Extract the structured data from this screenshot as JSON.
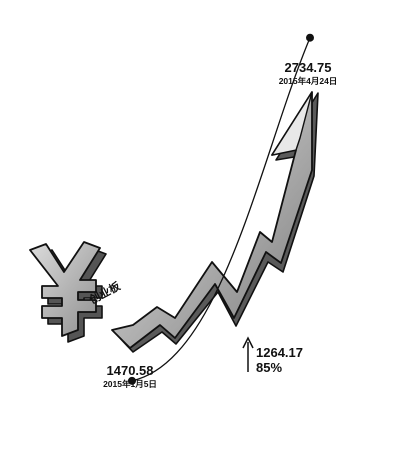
{
  "chart_data": {
    "type": "line",
    "title": "",
    "xlabel": "",
    "ylabel": "",
    "x": [
      "2015年1月5日",
      "2015年4月24日"
    ],
    "series": [
      {
        "values": [
          1470.58,
          2734.75
        ]
      }
    ],
    "annotations": {
      "start": {
        "value": "1470.58",
        "date": "2015年1月5日"
      },
      "end": {
        "value": "2734.75",
        "date": "2015年4月24日"
      },
      "change": {
        "value": "1264.17",
        "percent": "85%"
      }
    },
    "logo_text": "创业板",
    "ylim": [
      1400,
      2800
    ],
    "grid": false,
    "legend": "none"
  },
  "colors": {
    "arrow_fill": "#a8a8a8",
    "arrow_light": "#d9d9d9",
    "arrow_shadow": "#555555",
    "outline": "#111111",
    "text": "#111111"
  }
}
